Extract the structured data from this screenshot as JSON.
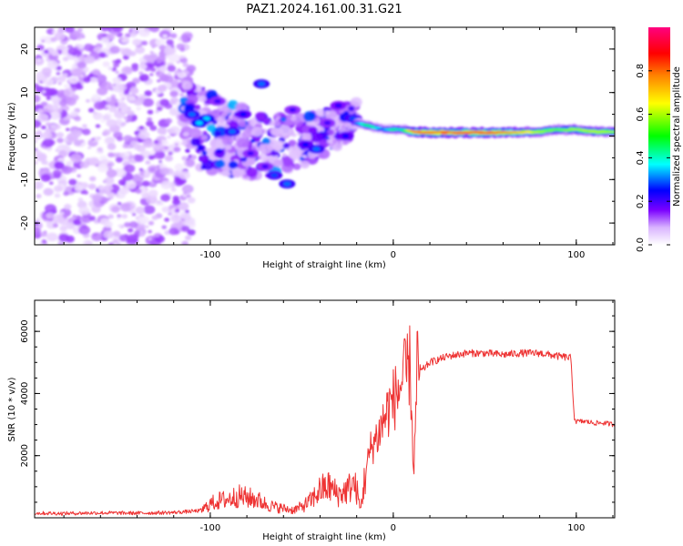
{
  "figure": {
    "title": "PAZ1.2024.161.00.31.G21"
  },
  "colorbar": {
    "label": "Normalized spectral amplitude",
    "ticks": [
      "0.0",
      "0.2",
      "0.4",
      "0.6",
      "0.8"
    ],
    "tick_values": [
      0.0,
      0.2,
      0.4,
      0.6,
      0.8
    ],
    "range": [
      0,
      1
    ],
    "colors": [
      "#ffffff",
      "#d9b3ff",
      "#7a00ff",
      "#0000ff",
      "#00ffff",
      "#00ff00",
      "#ffff00",
      "#ff8000",
      "#ff0000",
      "#ff0080"
    ]
  },
  "chart_data": [
    {
      "type": "heatmap",
      "title": "PAZ1.2024.161.00.31.G21",
      "xlabel": "Height of straight line (km)",
      "ylabel": "Frequency (Hz)",
      "xlim": [
        -196,
        121
      ],
      "ylim": [
        -25,
        25
      ],
      "xticks": [
        -100,
        0,
        100
      ],
      "xtick_labels": [
        "-100",
        "0",
        "100"
      ],
      "yticks": [
        -20,
        -10,
        0,
        10,
        20
      ],
      "ytick_labels": [
        "-20",
        "-10",
        "0",
        "10",
        "20"
      ],
      "grid": false,
      "features": [
        {
          "name": "noise",
          "x_range": [
            -196,
            -110
          ],
          "y_range": [
            -25,
            25
          ],
          "amplitude": 0.05
        },
        {
          "name": "scatter",
          "x_range": [
            -115,
            -20
          ],
          "y_range": [
            -12,
            12
          ],
          "amplitude": 0.2
        },
        {
          "name": "ridge",
          "x_range": [
            -20,
            121
          ],
          "y_center": 1,
          "amplitude_peak": 0.85
        }
      ],
      "ridge_profile": {
        "x": [
          -20,
          -15,
          -10,
          -5,
          0,
          5,
          10,
          20,
          40,
          60,
          70,
          80,
          90,
          100,
          110,
          121
        ],
        "y": [
          3,
          2.5,
          2,
          1.5,
          1.5,
          1.5,
          1,
          0.8,
          0.8,
          0.8,
          0.9,
          1,
          1.5,
          1.5,
          1,
          1
        ],
        "amp": [
          0.3,
          0.45,
          0.4,
          0.3,
          0.45,
          0.4,
          0.75,
          0.85,
          0.82,
          0.82,
          0.7,
          0.6,
          0.55,
          0.6,
          0.6,
          0.6
        ]
      },
      "blobs": [
        {
          "x": -102,
          "y": 4,
          "amp": 0.35
        },
        {
          "x": -96,
          "y": 8,
          "amp": 0.2
        },
        {
          "x": -88,
          "y": 1,
          "amp": 0.3
        },
        {
          "x": -82,
          "y": 5,
          "amp": 0.25
        },
        {
          "x": -78,
          "y": -4,
          "amp": 0.2
        },
        {
          "x": -72,
          "y": 12,
          "amp": 0.3
        },
        {
          "x": -70,
          "y": -7,
          "amp": 0.2
        },
        {
          "x": -65,
          "y": -9,
          "amp": 0.28
        },
        {
          "x": -58,
          "y": -11,
          "amp": 0.3
        },
        {
          "x": -55,
          "y": 6,
          "amp": 0.2
        },
        {
          "x": -48,
          "y": -2,
          "amp": 0.25
        },
        {
          "x": -42,
          "y": -3,
          "amp": 0.3
        },
        {
          "x": -36,
          "y": 3,
          "amp": 0.2
        },
        {
          "x": -30,
          "y": 7,
          "amp": 0.22
        },
        {
          "x": -26,
          "y": 0,
          "amp": 0.25
        },
        {
          "x": -22,
          "y": 4,
          "amp": 0.28
        },
        {
          "x": -110,
          "y": 5,
          "amp": 0.3
        },
        {
          "x": -106,
          "y": 3,
          "amp": 0.35
        }
      ]
    },
    {
      "type": "line",
      "xlabel": "Height of straight line (km)",
      "ylabel": "SNR (10 * v/v)",
      "xlim": [
        -196,
        121
      ],
      "ylim": [
        0,
        7000
      ],
      "xticks": [
        -100,
        0,
        100
      ],
      "xtick_labels": [
        "-100",
        "0",
        "100"
      ],
      "yticks": [
        2000,
        4000,
        6000
      ],
      "ytick_labels": [
        "2000",
        "4000",
        "6000"
      ],
      "grid": false,
      "line_color": "#ee3333",
      "x": [
        -196,
        -180,
        -160,
        -140,
        -120,
        -105,
        -100,
        -95,
        -90,
        -85,
        -80,
        -75,
        -70,
        -65,
        -60,
        -55,
        -50,
        -45,
        -40,
        -35,
        -30,
        -25,
        -22,
        -20,
        -18,
        -15,
        -12,
        -10,
        -8,
        -5,
        -2,
        0,
        3,
        5,
        7,
        9,
        10,
        11,
        12,
        13,
        15,
        20,
        25,
        30,
        40,
        50,
        60,
        70,
        80,
        90,
        97,
        98,
        99,
        100,
        105,
        110,
        115,
        121
      ],
      "y": [
        150,
        140,
        160,
        150,
        170,
        230,
        450,
        550,
        600,
        700,
        650,
        600,
        450,
        350,
        300,
        250,
        350,
        550,
        900,
        1000,
        750,
        900,
        1100,
        900,
        250,
        1500,
        2300,
        2500,
        2700,
        3200,
        3600,
        3800,
        4100,
        4400,
        4600,
        4900,
        3800,
        1400,
        2600,
        4800,
        4700,
        5000,
        5100,
        5200,
        5300,
        5300,
        5250,
        5300,
        5300,
        5200,
        5150,
        4100,
        3200,
        3100,
        3100,
        3050,
        3050,
        3000
      ]
    }
  ]
}
